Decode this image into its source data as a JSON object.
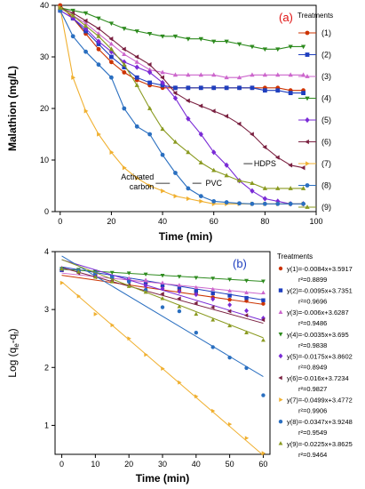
{
  "chart_data": [
    {
      "type": "line",
      "panel_label": "(a)",
      "xlabel": "Time (min)",
      "ylabel": "Malathion (mg/L)",
      "xlim": [
        -2,
        100
      ],
      "ylim": [
        0,
        40
      ],
      "xticks": [
        0,
        20,
        40,
        60,
        80,
        100
      ],
      "yticks": [
        0,
        10,
        20,
        30,
        40
      ],
      "legend_title": "Treatments",
      "legend_position": "right",
      "annotations": [
        {
          "text": "Activated carbon",
          "lines": [
            "Activated",
            "carbon"
          ],
          "x": 38,
          "y": 5.5
        },
        {
          "text": "PVC",
          "x": 60,
          "y": 5.5
        },
        {
          "text": "HDPS",
          "x": 80,
          "y": 9.3
        }
      ],
      "x": [
        0,
        5,
        10,
        15,
        20,
        25,
        30,
        35,
        40,
        45,
        50,
        55,
        60,
        65,
        70,
        75,
        80,
        85,
        90,
        95
      ],
      "series": [
        {
          "name": "(1)",
          "color": "#cc3300",
          "marker": "circle",
          "values": [
            40,
            37.5,
            34.5,
            31.5,
            29,
            27,
            25.5,
            24.5,
            24,
            24,
            24,
            24,
            24,
            24,
            24,
            24,
            24,
            24,
            23.5,
            23.5
          ]
        },
        {
          "name": "(2)",
          "color": "#1f3fbf",
          "marker": "square",
          "values": [
            39,
            37.5,
            35,
            32.5,
            30,
            28,
            26,
            25,
            24.5,
            24,
            24,
            24,
            24,
            24,
            24,
            24,
            23.5,
            23.5,
            23,
            23
          ]
        },
        {
          "name": "(3)",
          "color": "#cc66cc",
          "marker": "triangle-up",
          "values": [
            39.5,
            38,
            36.5,
            34.5,
            32.5,
            30.5,
            29,
            27.5,
            27,
            26.5,
            26.5,
            26.5,
            26.5,
            26,
            26,
            26.5,
            26.5,
            26.5,
            26.5,
            26.5
          ]
        },
        {
          "name": "(4)",
          "color": "#2e8b1f",
          "marker": "triangle-down",
          "values": [
            39.5,
            39,
            38.5,
            37.5,
            36.5,
            35.5,
            35,
            34.5,
            34,
            34,
            33.5,
            33.5,
            33,
            33,
            32.5,
            32,
            31.5,
            31.5,
            32,
            32
          ]
        },
        {
          "name": "(5)",
          "color": "#7a2bd6",
          "marker": "diamond",
          "values": [
            39,
            37.5,
            35.5,
            33,
            31,
            29,
            28,
            27,
            25,
            22,
            18,
            15,
            11.5,
            9,
            6,
            4,
            2.5,
            2,
            1.5,
            1.5
          ]
        },
        {
          "name": "(6)",
          "color": "#7a2040",
          "marker": "triangle-left",
          "values": [
            39.5,
            38.5,
            37,
            35.5,
            33.5,
            31.5,
            30,
            28.5,
            26,
            23,
            21.5,
            20.5,
            19.5,
            18.5,
            17,
            15,
            12.5,
            10.5,
            9,
            8.5
          ]
        },
        {
          "name": "(7)",
          "color": "#f0b030",
          "marker": "triangle-right",
          "values": [
            39.5,
            26,
            19.5,
            15,
            11.5,
            8.5,
            6.5,
            5,
            4,
            3,
            2.5,
            2,
            1.5,
            1.5,
            1.5,
            1.5,
            1.5,
            1.5,
            1.5,
            1.5
          ]
        },
        {
          "name": "(8)",
          "color": "#2a6fc0",
          "marker": "circle",
          "values": [
            39,
            34,
            31,
            28.5,
            26,
            20,
            16.5,
            15,
            11,
            7.5,
            4.5,
            3,
            2,
            1.8,
            1.6,
            1.5,
            1.5,
            1.5,
            1.5,
            1.5
          ]
        },
        {
          "name": "(9)",
          "color": "#8a9a20",
          "marker": "triangle-up",
          "values": [
            39.5,
            38,
            36,
            34,
            31.5,
            28.5,
            24.5,
            20,
            16,
            13.5,
            11.5,
            9.5,
            8,
            7,
            6,
            5.5,
            4.5,
            4.5,
            4.5,
            4.5
          ]
        }
      ]
    },
    {
      "type": "scatter",
      "panel_label": "(b)",
      "xlabel": "Time (min)",
      "ylabel": "Log (qe-qt)",
      "ylabel_parts": {
        "prefix": "Log (q",
        "sub1": "e",
        "mid": "-q",
        "sub2": "t",
        "suffix": ")"
      },
      "xlim": [
        -2,
        62
      ],
      "ylim": [
        0.5,
        4
      ],
      "xticks": [
        0,
        10,
        20,
        30,
        40,
        50,
        60
      ],
      "yticks": [
        1,
        2,
        3,
        4
      ],
      "legend_title": "Treatments",
      "legend_position": "right",
      "x": [
        0,
        5,
        10,
        15,
        20,
        25,
        30,
        35,
        40,
        45,
        50,
        55,
        60
      ],
      "series": [
        {
          "name": "y(1)=-0.0084x+3.5917",
          "r2": "r²=0.8899",
          "color": "#cc3300",
          "marker": "circle",
          "slope": -0.0084,
          "intercept": 3.5917,
          "values": [
            3.69,
            3.65,
            3.6,
            3.55,
            3.5,
            3.45,
            3.4,
            3.33,
            3.27,
            3.21,
            3.17,
            3.15,
            3.1
          ]
        },
        {
          "name": "y(2)=-0.0095x+3.7351",
          "r2": "r²=0.9696",
          "color": "#1f3fbf",
          "marker": "square",
          "slope": -0.0095,
          "intercept": 3.7351,
          "values": [
            3.68,
            3.66,
            3.62,
            3.56,
            3.51,
            3.47,
            3.42,
            3.38,
            3.32,
            3.28,
            3.24,
            3.2,
            3.16
          ]
        },
        {
          "name": "y(3)=-0.006x+3.6287",
          "r2": "r²=0.9486",
          "color": "#cc66cc",
          "marker": "triangle-up",
          "slope": -0.006,
          "intercept": 3.6287,
          "values": [
            3.72,
            3.68,
            3.6,
            3.58,
            3.54,
            3.51,
            3.46,
            3.42,
            3.38,
            3.35,
            3.32,
            3.29,
            3.29
          ]
        },
        {
          "name": "y(4)=-0.0035x+3.695",
          "r2": "r²=0.9838",
          "color": "#2e8b1f",
          "marker": "triangle-down",
          "slope": -0.0035,
          "intercept": 3.695,
          "values": [
            3.71,
            3.69,
            3.66,
            3.64,
            3.63,
            3.61,
            3.59,
            3.57,
            3.55,
            3.54,
            3.52,
            3.5,
            3.49
          ]
        },
        {
          "name": "y(5)=-0.0175x+3.8602",
          "r2": "r²=0.8949",
          "color": "#7a2bd6",
          "marker": "diamond",
          "slope": -0.0175,
          "intercept": 3.8602,
          "values": [
            3.69,
            3.65,
            3.6,
            3.55,
            3.48,
            3.41,
            3.36,
            3.31,
            3.26,
            3.18,
            3.08,
            2.98,
            2.85
          ]
        },
        {
          "name": "y(6)=-0.016x+3.7234",
          "r2": "r²=0.9827",
          "color": "#7a2040",
          "marker": "triangle-left",
          "slope": -0.016,
          "intercept": 3.7234,
          "values": [
            3.69,
            3.63,
            3.56,
            3.5,
            3.42,
            3.34,
            3.27,
            3.19,
            3.11,
            3.04,
            2.97,
            2.9,
            2.82
          ]
        },
        {
          "name": "y(7)=-0.0499x+3.4772",
          "r2": "r²=0.9906",
          "color": "#f0b030",
          "marker": "triangle-right",
          "slope": -0.0499,
          "intercept": 3.4772,
          "values": [
            3.46,
            3.23,
            2.92,
            2.73,
            2.5,
            2.22,
            1.98,
            1.74,
            1.5,
            1.25,
            1.02,
            0.78,
            0.52
          ]
        },
        {
          "name": "y(8)=-0.0347x+3.9248",
          "r2": "r²=0.9549",
          "color": "#2a6fc0",
          "marker": "circle",
          "slope": -0.0347,
          "intercept": 3.9248,
          "values": [
            3.7,
            3.67,
            3.63,
            3.56,
            3.48,
            3.34,
            3.04,
            2.97,
            2.6,
            2.35,
            2.17,
            1.99,
            1.52
          ]
        },
        {
          "name": "y(9)=-0.0225x+3.8625",
          "r2": "r²=0.9464",
          "color": "#8a9a20",
          "marker": "triangle-up",
          "slope": -0.0225,
          "intercept": 3.8625,
          "values": [
            3.7,
            3.65,
            3.56,
            3.48,
            3.4,
            3.3,
            3.19,
            3.05,
            2.92,
            2.82,
            2.72,
            2.6,
            2.47
          ]
        }
      ]
    }
  ]
}
